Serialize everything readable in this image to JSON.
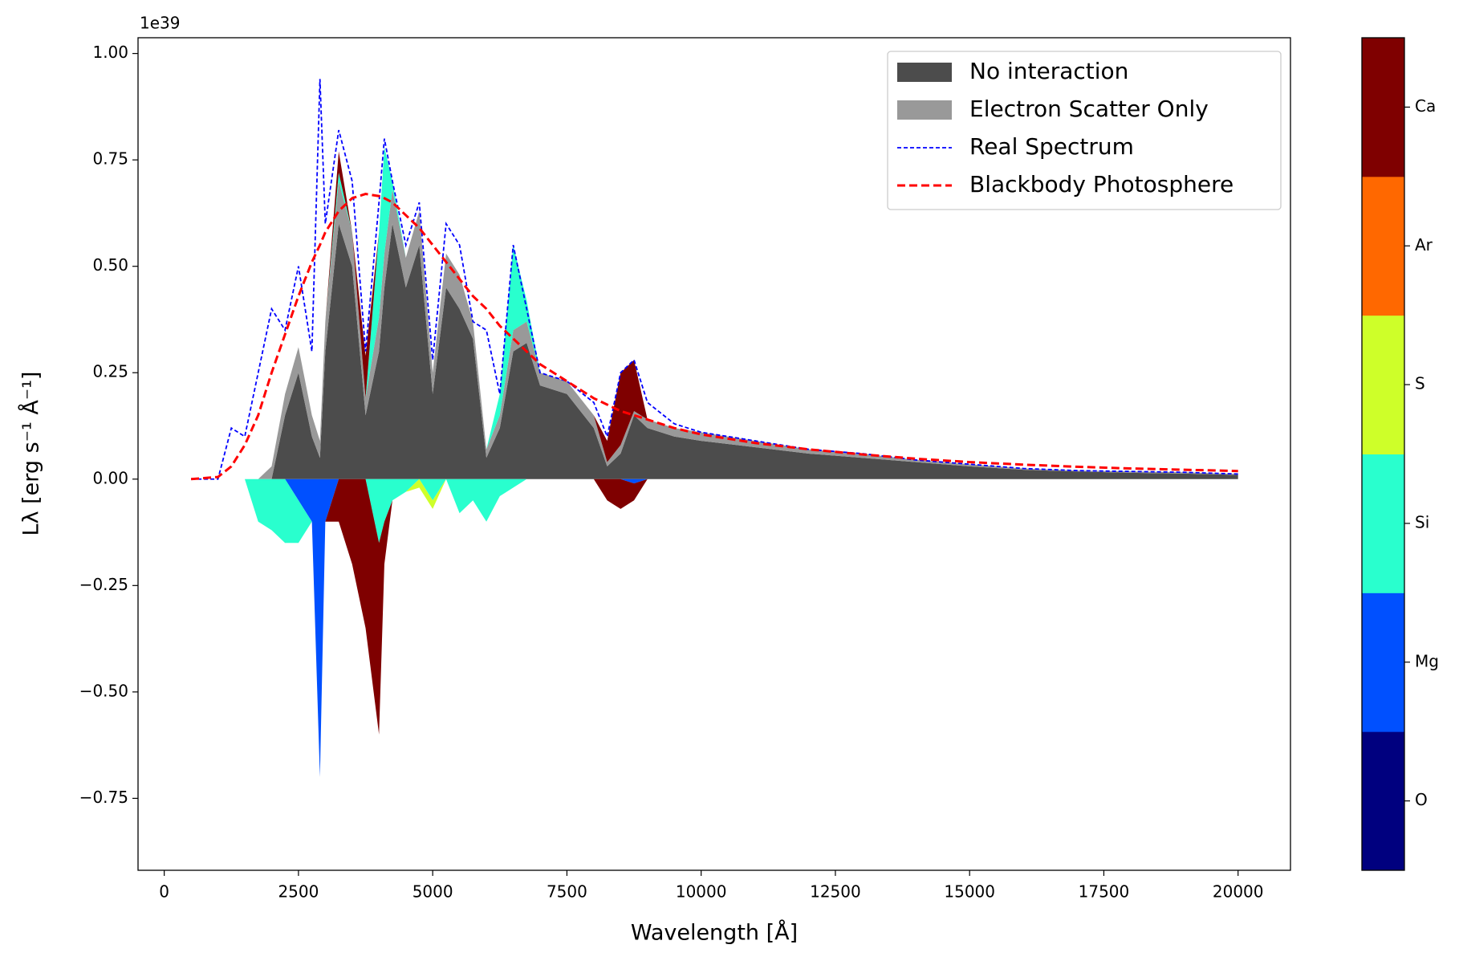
{
  "chart_data": {
    "type": "spectrum",
    "xlabel": "Wavelength [Å]",
    "ylabel": "Lλ [erg s⁻¹ Å⁻¹]",
    "y_offset_label": "1e39",
    "xlim": [
      -488,
      20976
    ],
    "ylim": [
      -0.919,
      1.037
    ],
    "xticks": [
      0,
      2500,
      5000,
      7500,
      10000,
      12500,
      15000,
      17500,
      20000
    ],
    "yticks": [
      {
        "value": -0.75,
        "label": "−0.75"
      },
      {
        "value": -0.5,
        "label": "−0.50"
      },
      {
        "value": -0.25,
        "label": "−0.25"
      },
      {
        "value": 0,
        "label": "0.00"
      },
      {
        "value": 0.25,
        "label": "0.25"
      },
      {
        "value": 0.5,
        "label": "0.50"
      },
      {
        "value": 0.75,
        "label": "0.75"
      },
      {
        "value": 1,
        "label": "1.00"
      }
    ],
    "legend": "upper right",
    "x": [
      500,
      1000,
      1250,
      1500,
      1750,
      2000,
      2250,
      2500,
      2750,
      2900,
      3000,
      3250,
      3500,
      3750,
      4000,
      4100,
      4250,
      4500,
      4750,
      5000,
      5250,
      5500,
      5750,
      6000,
      6250,
      6500,
      6750,
      7000,
      7500,
      8000,
      8250,
      8500,
      8750,
      9000,
      9500,
      10000,
      11000,
      12000,
      13000,
      14000,
      15000,
      16000,
      17000,
      18000,
      19000,
      20000
    ],
    "series": [
      {
        "name": "No interaction",
        "kind": "area",
        "color": "#4c4c4c",
        "values": [
          0,
          0,
          0,
          0,
          0,
          0,
          0.15,
          0.25,
          0.1,
          0.05,
          0.3,
          0.6,
          0.5,
          0.15,
          0.3,
          0.45,
          0.6,
          0.45,
          0.55,
          0.2,
          0.45,
          0.4,
          0.33,
          0.05,
          0.12,
          0.3,
          0.32,
          0.22,
          0.2,
          0.12,
          0.03,
          0.06,
          0.15,
          0.12,
          0.1,
          0.09,
          0.075,
          0.06,
          0.05,
          0.04,
          0.03,
          0.022,
          0.018,
          0.015,
          0.013,
          0.01
        ]
      },
      {
        "name": "Electron Scatter Only",
        "kind": "area",
        "color": "#999999",
        "values": [
          0,
          0,
          0,
          0,
          0,
          0.03,
          0.05,
          0.06,
          0.05,
          0.04,
          0.07,
          0.1,
          0.08,
          0.04,
          0.08,
          0.08,
          0.08,
          0.07,
          0.08,
          0.05,
          0.08,
          0.08,
          0.04,
          0.02,
          0.03,
          0.05,
          0.05,
          0.03,
          0.03,
          0.03,
          0.01,
          0.02,
          0.01,
          0.02,
          0.02,
          0.02,
          0.015,
          0.01,
          0.01,
          0.005,
          0.005,
          0.003,
          0.002,
          0.003,
          0.003,
          0.002
        ]
      },
      {
        "name": "Real Spectrum",
        "kind": "line",
        "color": "#0000ff",
        "values": [
          0,
          0,
          0.12,
          0.1,
          0.25,
          0.4,
          0.35,
          0.5,
          0.3,
          0.94,
          0.6,
          0.82,
          0.7,
          0.3,
          0.65,
          0.8,
          0.7,
          0.55,
          0.65,
          0.28,
          0.6,
          0.55,
          0.37,
          0.35,
          0.2,
          0.55,
          0.4,
          0.25,
          0.23,
          0.18,
          0.1,
          0.25,
          0.28,
          0.18,
          0.13,
          0.11,
          0.09,
          0.07,
          0.06,
          0.045,
          0.035,
          0.025,
          0.02,
          0.018,
          0.016,
          0.012
        ]
      },
      {
        "name": "Blackbody Photosphere",
        "kind": "line",
        "color": "#ff0000",
        "values": [
          0,
          0.005,
          0.03,
          0.08,
          0.15,
          0.25,
          0.34,
          0.43,
          0.51,
          0.55,
          0.58,
          0.63,
          0.66,
          0.67,
          0.665,
          0.66,
          0.65,
          0.62,
          0.59,
          0.55,
          0.51,
          0.47,
          0.43,
          0.4,
          0.36,
          0.33,
          0.3,
          0.27,
          0.23,
          0.19,
          0.175,
          0.16,
          0.15,
          0.14,
          0.12,
          0.105,
          0.085,
          0.07,
          0.058,
          0.048,
          0.04,
          0.034,
          0.029,
          0.025,
          0.022,
          0.019
        ]
      }
    ],
    "emission": [
      {
        "name": "Si",
        "color": "#29ffce",
        "values": [
          0,
          0,
          0,
          0,
          0,
          0,
          0,
          0,
          0,
          0,
          0,
          0.02,
          0,
          0,
          0.2,
          0.25,
          0.02,
          0,
          0,
          0,
          0,
          0,
          0,
          0,
          0.05,
          0.2,
          0.05,
          0,
          0,
          0,
          0,
          0,
          0,
          0,
          0,
          0,
          0,
          0,
          0,
          0,
          0,
          0,
          0,
          0,
          0,
          0
        ]
      },
      {
        "name": "Ca",
        "color": "#7f0000",
        "values": [
          0,
          0,
          0,
          0,
          0,
          0,
          0,
          0,
          0,
          0,
          0,
          0.05,
          0,
          0.1,
          0,
          0,
          0,
          0,
          0,
          0,
          0,
          0,
          0,
          0,
          0,
          0,
          0,
          0,
          0,
          0,
          0.05,
          0.17,
          0.12,
          0,
          0,
          0,
          0,
          0,
          0,
          0,
          0,
          0,
          0,
          0,
          0,
          0
        ]
      }
    ],
    "absorption": [
      {
        "name": "Mg",
        "color": "#0050ff",
        "values": [
          0,
          0,
          0,
          0,
          0,
          0,
          0,
          -0.05,
          -0.1,
          -0.7,
          -0.1,
          0,
          0,
          0,
          0,
          0,
          0,
          0,
          0,
          0,
          0,
          0,
          0,
          0,
          0,
          0,
          0,
          0,
          0,
          0,
          0,
          0,
          -0.01,
          0,
          0,
          0,
          0,
          0,
          0,
          0,
          0,
          0,
          0,
          0,
          0,
          0
        ]
      },
      {
        "name": "Si",
        "color": "#29ffce",
        "values": [
          0,
          0,
          0,
          0,
          -0.1,
          -0.12,
          -0.15,
          -0.1,
          0,
          0,
          0,
          0,
          0,
          0,
          -0.15,
          -0.1,
          -0.05,
          -0.03,
          0,
          -0.05,
          0,
          -0.08,
          -0.05,
          -0.1,
          -0.04,
          -0.02,
          0,
          0,
          0,
          0,
          0,
          0,
          0,
          0,
          0,
          0,
          0,
          0,
          0,
          0,
          0,
          0,
          0,
          0,
          0,
          0
        ]
      },
      {
        "name": "S",
        "color": "#ceff29",
        "values": [
          0,
          0,
          0,
          0,
          0,
          0,
          0,
          0,
          0,
          0,
          0,
          0,
          0,
          0,
          0,
          0,
          0,
          0,
          -0.02,
          -0.02,
          0,
          0,
          0,
          0,
          0,
          0,
          0,
          0,
          0,
          0,
          0,
          0,
          0,
          0,
          0,
          0,
          0,
          0,
          0,
          0,
          0,
          0,
          0,
          0,
          0,
          0
        ]
      },
      {
        "name": "Ca",
        "color": "#7f0000",
        "values": [
          0,
          0,
          0,
          0,
          0,
          0,
          0,
          0,
          0,
          0,
          0,
          -0.1,
          -0.2,
          -0.35,
          -0.45,
          -0.1,
          0,
          0,
          0,
          0,
          0,
          0,
          0,
          0,
          0,
          0,
          0,
          0,
          0,
          0,
          -0.05,
          -0.07,
          -0.04,
          0,
          0,
          0,
          0,
          0,
          0,
          0,
          0,
          0,
          0,
          0,
          0,
          0
        ]
      }
    ],
    "colorbar": {
      "labels": [
        "O",
        "Mg",
        "Si",
        "S",
        "Ar",
        "Ca"
      ],
      "colors": [
        "#00007f",
        "#0050ff",
        "#29ffce",
        "#ceff29",
        "#ff6800",
        "#7f0000"
      ]
    }
  }
}
